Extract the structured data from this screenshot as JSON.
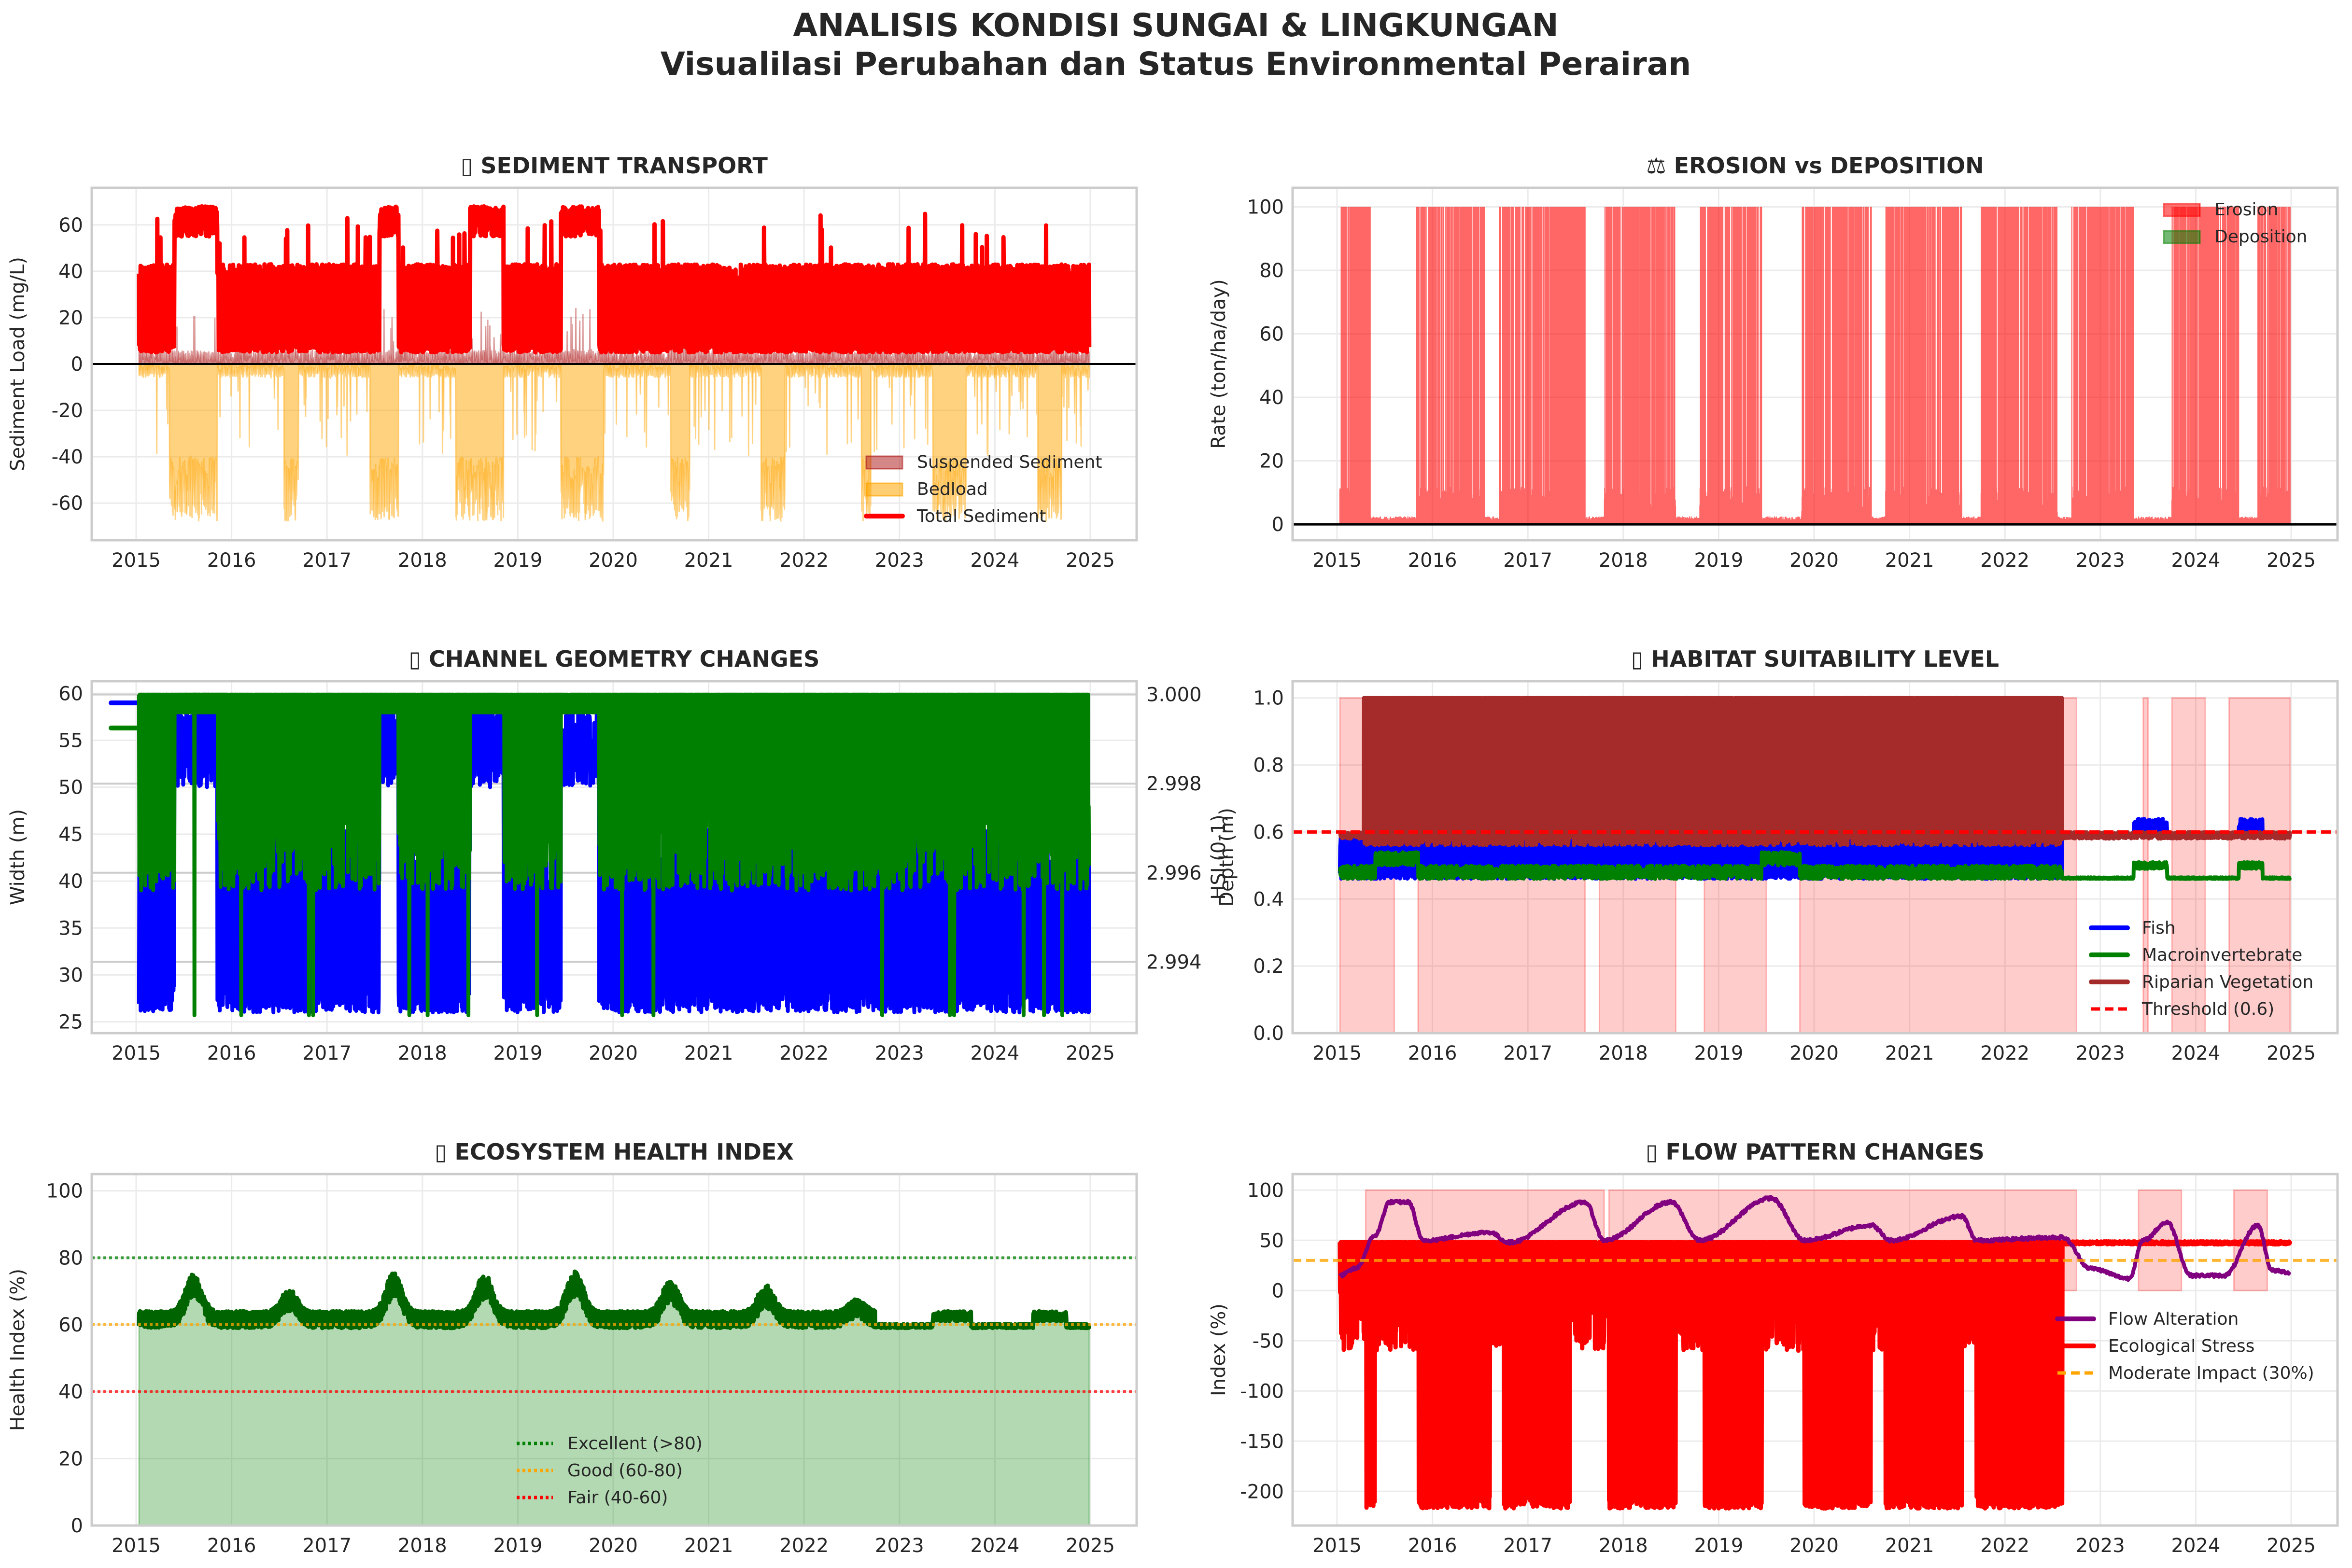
{
  "figure": {
    "title": "ANALISIS KONDISI SUNGAI & LINGKUNGAN",
    "subtitle": "Visualilasi Perubahan dan Status Environmental Perairan"
  },
  "chart_data": [
    {
      "id": "sediment",
      "type": "area",
      "title": "▯ SEDIMENT TRANSPORT",
      "icon": "missing-glyph-icon",
      "xlabel": "",
      "ylabel": "Sediment Load (mg/L)",
      "x_ticks": [
        "2015",
        "2016",
        "2017",
        "2018",
        "2019",
        "2020",
        "2021",
        "2022",
        "2023",
        "2024",
        "2025"
      ],
      "x_range": [
        2014.6,
        2025.5
      ],
      "y_ticks": [
        -60,
        -40,
        -20,
        0,
        20,
        40,
        60
      ],
      "ylim": [
        -76,
        76
      ],
      "grid": true,
      "legend": {
        "placement": "lower-right",
        "entries": [
          {
            "label": "Suspended Sediment",
            "kind": "patch",
            "color": "#b22222"
          },
          {
            "label": "Bedload",
            "kind": "patch",
            "color": "#ffa500"
          },
          {
            "label": "Total Sediment",
            "kind": "line",
            "color": "#ff0000"
          }
        ]
      },
      "hline": {
        "y": 0,
        "color": "#000000"
      },
      "series": [
        {
          "name": "Total Sediment",
          "style": "line",
          "color": "#ff0000",
          "baseline_low": 5,
          "baseline_high": 43,
          "peak": 68,
          "peak_periods": [
            [
              2015.4,
              2015.85
            ],
            [
              2017.55,
              2017.75
            ],
            [
              2018.5,
              2018.85
            ],
            [
              2019.45,
              2019.85
            ]
          ]
        },
        {
          "name": "Suspended Sediment",
          "style": "fill",
          "color": "#b22222",
          "typical": 5,
          "max": 25
        },
        {
          "name": "Bedload",
          "style": "fill-negative",
          "color": "#ffa500",
          "typical": -5,
          "min": -68,
          "dip_periods": [
            [
              2015.35,
              2015.85
            ],
            [
              2016.55,
              2016.7
            ],
            [
              2017.45,
              2017.75
            ],
            [
              2018.35,
              2018.85
            ],
            [
              2019.45,
              2019.9
            ],
            [
              2020.6,
              2020.8
            ],
            [
              2021.55,
              2021.8
            ],
            [
              2022.6,
              2022.7
            ],
            [
              2023.35,
              2023.7
            ],
            [
              2024.45,
              2024.7
            ]
          ]
        }
      ],
      "date_range": [
        2015.03,
        2024.99
      ]
    },
    {
      "id": "erosion",
      "type": "bar",
      "title": "⚖ EROSION vs DEPOSITION",
      "icon": "scales-icon",
      "ylabel": "Rate (ton/ha/day)",
      "x_ticks": [
        "2015",
        "2016",
        "2017",
        "2018",
        "2019",
        "2020",
        "2021",
        "2022",
        "2023",
        "2024",
        "2025"
      ],
      "x_range": [
        2014.55,
        2025.5
      ],
      "y_ticks": [
        0,
        20,
        40,
        60,
        80,
        100
      ],
      "ylim": [
        -5,
        106
      ],
      "grid": true,
      "legend": {
        "placement": "upper-right",
        "entries": [
          {
            "label": "Erosion",
            "kind": "patch",
            "color": "#ff0000"
          },
          {
            "label": "Deposition",
            "kind": "patch",
            "color": "#008000"
          }
        ]
      },
      "hline": {
        "y": 0,
        "color": "#000000"
      },
      "series": [
        {
          "name": "Erosion",
          "color": "#ff0000",
          "base": 8,
          "spike": 100,
          "active_periods": [
            [
              2015.03,
              2015.35
            ],
            [
              2015.83,
              2016.55
            ],
            [
              2016.7,
              2017.6
            ],
            [
              2017.8,
              2018.55
            ],
            [
              2018.8,
              2019.45
            ],
            [
              2019.87,
              2020.6
            ],
            [
              2020.75,
              2021.55
            ],
            [
              2021.75,
              2022.55
            ],
            [
              2022.7,
              2023.35
            ],
            [
              2023.75,
              2024.45
            ],
            [
              2024.65,
              2024.99
            ]
          ],
          "quiet_level": 1
        },
        {
          "name": "Deposition",
          "color": "#008000",
          "values": []
        }
      ],
      "date_range": [
        2015.03,
        2024.99
      ]
    },
    {
      "id": "geometry",
      "type": "line",
      "title": "▯ CHANNEL GEOMETRY CHANGES",
      "icon": "missing-glyph-icon",
      "ylabel": "Width (m)",
      "ylabel_color": "#0000ff",
      "y2label": "Depth (m)",
      "y2label_color": "#008000",
      "x_ticks": [
        "2015",
        "2016",
        "2017",
        "2018",
        "2019",
        "2020",
        "2021",
        "2022",
        "2023",
        "2024",
        "2025"
      ],
      "x_range": [
        2014.6,
        2025.5
      ],
      "y_ticks": [
        25,
        30,
        35,
        40,
        45,
        50,
        55,
        60
      ],
      "ylim": [
        23.8,
        61.3
      ],
      "y2_ticks": [
        "2.994",
        "2.996",
        "2.998",
        "3.000"
      ],
      "y2_values": [
        2.994,
        2.996,
        2.998,
        3.0
      ],
      "y2lim": [
        2.9924,
        3.0003
      ],
      "grid": true,
      "legend": {
        "placement": "upper-left",
        "entries": [
          {
            "label": "Width",
            "kind": "line",
            "color": "#0000ff"
          },
          {
            "label": "Depth",
            "kind": "line",
            "color": "#008000"
          }
        ]
      },
      "series": [
        {
          "name": "Width",
          "color": "#0000ff",
          "low": 26,
          "high": 45,
          "peak": 59,
          "peak_periods": [
            [
              2015.4,
              2015.85
            ],
            [
              2017.55,
              2017.75
            ],
            [
              2018.5,
              2018.85
            ],
            [
              2019.45,
              2019.85
            ]
          ]
        },
        {
          "name": "Depth",
          "color": "#008000",
          "low": 2.9956,
          "high": 3.0
        }
      ],
      "date_range": [
        2015.03,
        2024.99
      ]
    },
    {
      "id": "habitat",
      "type": "line",
      "title": "▯ HABITAT SUITABILITY LEVEL",
      "icon": "missing-glyph-icon",
      "ylabel": "HSI (0-1)",
      "x_ticks": [
        "2015",
        "2016",
        "2017",
        "2018",
        "2019",
        "2020",
        "2021",
        "2022",
        "2023",
        "2024",
        "2025"
      ],
      "x_range": [
        2014.55,
        2025.5
      ],
      "y_ticks": [
        "0.0",
        "0.2",
        "0.4",
        "0.6",
        "0.8",
        "1.0"
      ],
      "y_values": [
        0,
        0.2,
        0.4,
        0.6,
        0.8,
        1.0
      ],
      "ylim": [
        0,
        1.05
      ],
      "grid": true,
      "legend": {
        "placement": "lower-right",
        "entries": [
          {
            "label": "Fish",
            "kind": "line",
            "color": "#0000ff"
          },
          {
            "label": "Macroinvertebrate",
            "kind": "line",
            "color": "#008000"
          },
          {
            "label": "Riparian Vegetation",
            "kind": "line",
            "color": "#a52a2a"
          },
          {
            "label": "Threshold (0.6)",
            "kind": "dashed",
            "color": "#ff0000"
          }
        ]
      },
      "threshold": 0.6,
      "shaded_periods": [
        [
          2015.03,
          2015.6
        ],
        [
          2015.85,
          2017.6
        ],
        [
          2017.75,
          2018.55
        ],
        [
          2018.85,
          2019.5
        ],
        [
          2019.85,
          2022.75
        ],
        [
          2023.45,
          2023.5
        ],
        [
          2023.75,
          2024.1
        ],
        [
          2024.35,
          2024.99
        ]
      ],
      "series": [
        {
          "name": "Fish",
          "color": "#0000ff",
          "low": 0.46,
          "high": 0.58,
          "late": 0.6
        },
        {
          "name": "Macroinvertebrate",
          "color": "#008000",
          "low": 0.46,
          "high": 0.51
        },
        {
          "name": "Riparian Vegetation",
          "color": "#a52a2a",
          "low": 0.55,
          "high": 1.0,
          "active_until": 2022.6,
          "late": 0.59
        }
      ],
      "date_range": [
        2015.03,
        2024.99
      ]
    },
    {
      "id": "health",
      "type": "area",
      "title": "▯ ECOSYSTEM HEALTH INDEX",
      "icon": "missing-glyph-icon",
      "ylabel": "Health Index (%)",
      "x_ticks": [
        "2015",
        "2016",
        "2017",
        "2018",
        "2019",
        "2020",
        "2021",
        "2022",
        "2023",
        "2024",
        "2025"
      ],
      "x_range": [
        2014.55,
        2025.5
      ],
      "y_ticks": [
        0,
        20,
        40,
        60,
        80,
        100
      ],
      "ylim": [
        0,
        105
      ],
      "grid": true,
      "legend": {
        "placement": "lower-center",
        "entries": [
          {
            "label": "Excellent (>80)",
            "kind": "dotted",
            "color": "#008000"
          },
          {
            "label": "Good (60-80)",
            "kind": "dotted",
            "color": "#ffa500"
          },
          {
            "label": "Fair (40-60)",
            "kind": "dotted",
            "color": "#ff0000"
          }
        ]
      },
      "reference_lines": [
        80,
        60,
        40
      ],
      "series": [
        {
          "name": "Health Index",
          "color": "#006400",
          "fill": "#b2d8b2",
          "base_low": 59,
          "base_high": 64,
          "peaks": [
            [
              2015.6,
              75
            ],
            [
              2016.6,
              70
            ],
            [
              2017.7,
              75
            ],
            [
              2018.65,
              75
            ],
            [
              2019.6,
              76
            ],
            [
              2020.6,
              73
            ],
            [
              2021.6,
              71
            ],
            [
              2022.55,
              67
            ]
          ],
          "late_low": 59,
          "late_high": 63
        },
        {
          "name": "fill",
          "color": "#b2d8b2"
        }
      ],
      "date_range": [
        2015.03,
        2024.99
      ]
    },
    {
      "id": "flow",
      "type": "line",
      "title": "▯ FLOW PATTERN CHANGES",
      "icon": "missing-glyph-icon",
      "ylabel": "Index (%)",
      "x_ticks": [
        "2015",
        "2016",
        "2017",
        "2018",
        "2019",
        "2020",
        "2021",
        "2022",
        "2023",
        "2024",
        "2025"
      ],
      "x_range": [
        2014.55,
        2025.5
      ],
      "y_ticks": [
        -200,
        -150,
        -100,
        -50,
        0,
        50,
        100
      ],
      "ylim": [
        -234,
        116
      ],
      "grid": true,
      "legend": {
        "placement": "center-right",
        "entries": [
          {
            "label": "Flow Alteration",
            "kind": "line",
            "color": "#800080"
          },
          {
            "label": "Ecological Stress",
            "kind": "line",
            "color": "#ff0000"
          },
          {
            "label": "Moderate Impact (30%)",
            "kind": "dashed",
            "color": "#ffa500"
          }
        ]
      },
      "moderate_impact": 30,
      "shaded_periods": [
        [
          2015.3,
          2017.8
        ],
        [
          2017.85,
          2022.75
        ],
        [
          2023.4,
          2023.85
        ],
        [
          2024.4,
          2024.75
        ]
      ],
      "series": [
        {
          "name": "Flow Alteration",
          "color": "#800080",
          "points": [
            [
              2015.03,
              15
            ],
            [
              2015.2,
              22
            ],
            [
              2015.4,
              55
            ],
            [
              2015.55,
              88
            ],
            [
              2015.75,
              88
            ],
            [
              2015.9,
              50
            ],
            [
              2016.6,
              58
            ],
            [
              2016.8,
              48
            ],
            [
              2017.6,
              88
            ],
            [
              2017.8,
              50
            ],
            [
              2018.5,
              88
            ],
            [
              2018.8,
              50
            ],
            [
              2019.55,
              92
            ],
            [
              2019.9,
              50
            ],
            [
              2020.6,
              65
            ],
            [
              2020.8,
              50
            ],
            [
              2021.55,
              74
            ],
            [
              2021.7,
              50
            ],
            [
              2022.6,
              53
            ],
            [
              2022.9,
              22
            ],
            [
              2023.3,
              12
            ],
            [
              2023.45,
              50
            ],
            [
              2023.7,
              68
            ],
            [
              2023.95,
              15
            ],
            [
              2024.3,
              15
            ],
            [
              2024.65,
              65
            ],
            [
              2024.8,
              20
            ],
            [
              2024.99,
              18
            ]
          ]
        },
        {
          "name": "Ecological Stress",
          "color": "#ff0000",
          "high": 48,
          "low": -215,
          "active_until": 2022.6
        }
      ],
      "date_range": [
        2015.03,
        2024.99
      ]
    }
  ]
}
